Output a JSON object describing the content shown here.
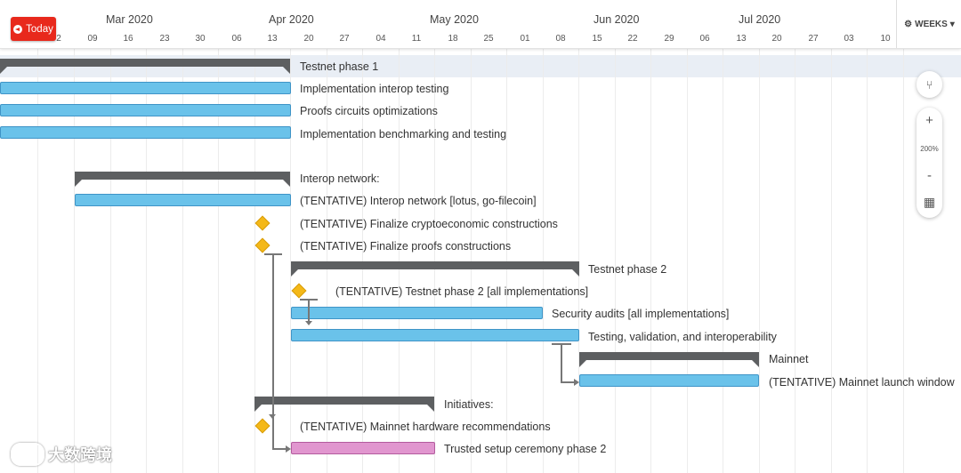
{
  "header": {
    "today_label": "Today",
    "weeks_label": "WEEKS",
    "months": [
      "Mar 2020",
      "Apr 2020",
      "May 2020",
      "Jun 2020",
      "Jul 2020"
    ],
    "days": [
      "2",
      "09",
      "16",
      "23",
      "30",
      "06",
      "13",
      "20",
      "27",
      "04",
      "11",
      "18",
      "25",
      "01",
      "08",
      "15",
      "22",
      "29",
      "06",
      "13",
      "20",
      "27",
      "03",
      "10"
    ]
  },
  "tasks": [
    "Testnet phase 1",
    "Implementation interop testing",
    "Proofs circuits optimizations",
    "Implementation benchmarking and testing",
    "Interop network:",
    "(TENTATIVE) Interop network [lotus, go-filecoin]",
    "(TENTATIVE) Finalize cryptoeconomic constructions",
    "(TENTATIVE) Finalize proofs constructions",
    "Testnet phase 2",
    "(TENTATIVE) Testnet phase 2 [all implementations]",
    "Security audits [all implementations]",
    "Testing, validation, and interoperability",
    "Mainnet",
    "(TENTATIVE) Mainnet launch window",
    "Initiatives:",
    "(TENTATIVE) Mainnet hardware recommendations",
    "Trusted setup ceremony phase 2"
  ],
  "zoom": {
    "plus": "+",
    "level": "200%",
    "minus": "-"
  },
  "watermark": "大数跨境",
  "colors": {
    "bar": "#6ac2ea",
    "summary": "#5d5f61",
    "milestone": "#f4b818",
    "pink": "#e196cf",
    "today": "#e8291c"
  }
}
